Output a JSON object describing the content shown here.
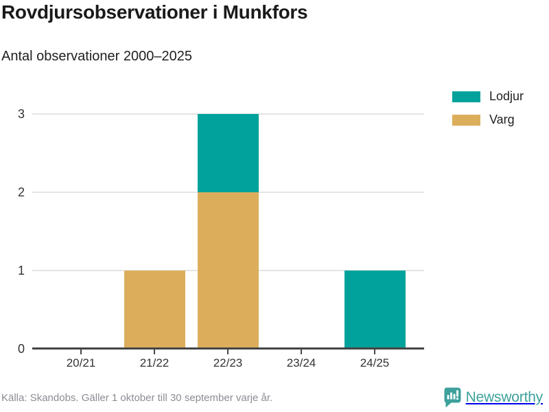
{
  "header": {
    "title": "Rovdjursobservationer i Munkfors",
    "subtitle": "Antal observationer 2000–2025"
  },
  "chart_data": {
    "type": "bar",
    "stacked": true,
    "title": "Rovdjursobservationer i Munkfors",
    "subtitle": "Antal observationer 2000–2025",
    "categories": [
      "20/21",
      "21/22",
      "22/23",
      "23/24",
      "24/25"
    ],
    "series": [
      {
        "name": "Lodjur",
        "color": "#00a29b",
        "values": [
          0,
          0,
          1,
          0,
          1
        ]
      },
      {
        "name": "Varg",
        "color": "#dcae5c",
        "values": [
          0,
          1,
          2,
          0,
          0
        ]
      }
    ],
    "stack_order_bottom_to_top": [
      "Varg",
      "Lodjur"
    ],
    "xlabel": "",
    "ylabel": "",
    "ylim": [
      0,
      3
    ],
    "yticks": [
      0,
      1,
      2,
      3
    ],
    "grid": "horizontal",
    "legend_position": "top-right"
  },
  "footer": {
    "source": "Källa: Skandobs. Gäller 1 oktober till 30 september varje år.",
    "brand": "Newsworthy"
  },
  "colors": {
    "lodjur": "#00a29b",
    "varg": "#dcae5c",
    "gridline": "#e4e4e4",
    "axis": "#454545",
    "tick_text": "#333333",
    "title_text": "#1a1a1a",
    "footer_text": "#8b8b94",
    "brand_teal": "#3da09b"
  }
}
